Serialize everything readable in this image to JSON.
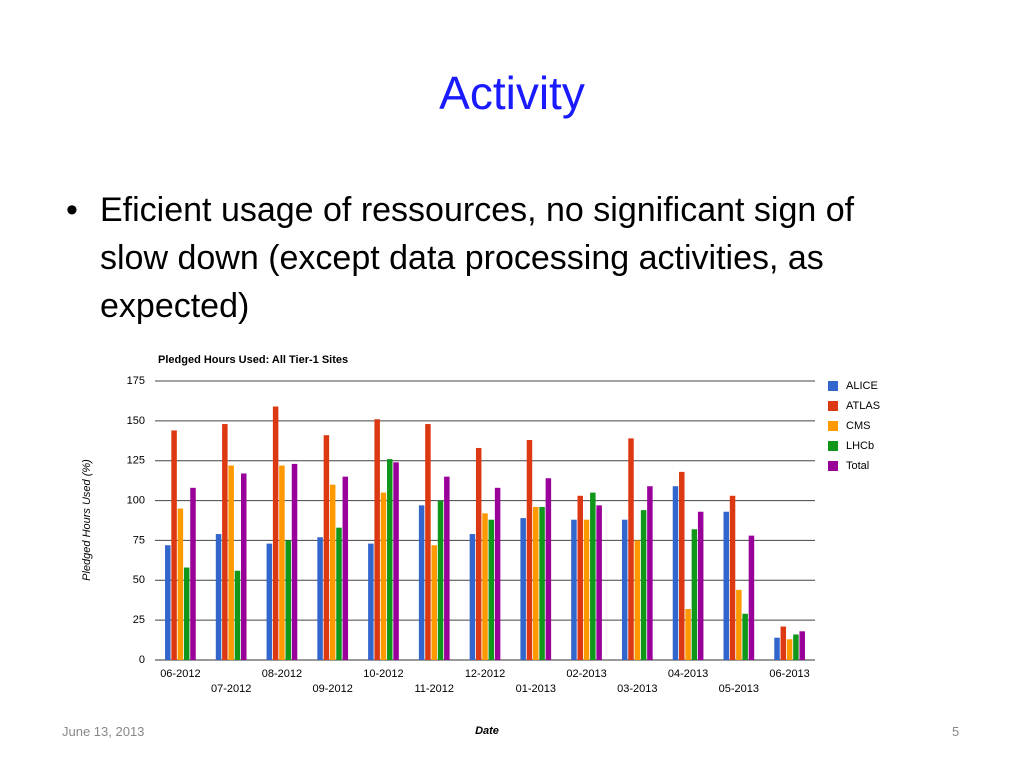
{
  "title": "Activity",
  "bullet": "Eficient usage of ressources, no  significant sign of slow down (except data processing activities, as expected)",
  "footer": {
    "date": "June 13, 2013",
    "page": "5"
  },
  "chart_data": {
    "type": "bar",
    "title": "Pledged Hours Used: All Tier-1 Sites",
    "x_label": "Date",
    "y_label": "Pledged Hours Used (%)",
    "categories": [
      "06-2012",
      "07-2012",
      "08-2012",
      "09-2012",
      "10-2012",
      "11-2012",
      "12-2012",
      "01-2013",
      "02-2013",
      "03-2013",
      "04-2013",
      "05-2013",
      "06-2013"
    ],
    "series": [
      {
        "name": "ALICE",
        "color": "#3366cc",
        "values": [
          72,
          79,
          73,
          77,
          73,
          97,
          79,
          89,
          88,
          88,
          109,
          93,
          14
        ]
      },
      {
        "name": "ATLAS",
        "color": "#dc3912",
        "values": [
          144,
          148,
          159,
          141,
          151,
          148,
          133,
          138,
          103,
          139,
          118,
          103,
          21
        ]
      },
      {
        "name": "CMS",
        "color": "#ff9900",
        "values": [
          95,
          122,
          122,
          110,
          105,
          72,
          92,
          96,
          88,
          75,
          32,
          44,
          13
        ]
      },
      {
        "name": "LHCb",
        "color": "#109618",
        "values": [
          58,
          56,
          75,
          83,
          126,
          100,
          88,
          96,
          105,
          94,
          82,
          29,
          16
        ]
      },
      {
        "name": "Total",
        "color": "#990099",
        "values": [
          108,
          117,
          123,
          115,
          124,
          115,
          108,
          114,
          97,
          109,
          93,
          78,
          18
        ]
      }
    ],
    "ylim": [
      0,
      175
    ],
    "yticks": [
      0,
      25,
      50,
      75,
      100,
      125,
      150,
      175
    ],
    "grid": true,
    "legend": "right"
  }
}
